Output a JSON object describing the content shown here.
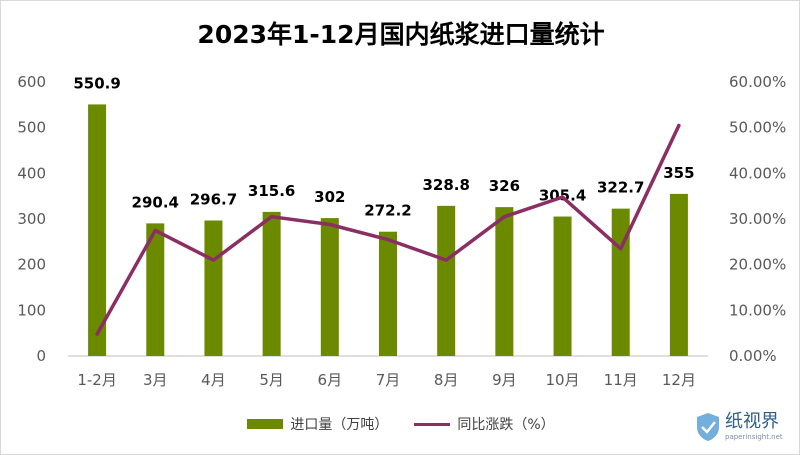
{
  "chart_data": {
    "type": "bar+line",
    "title": "2023年1-12月国内纸浆进口量统计",
    "categories": [
      "1-2月",
      "3月",
      "4月",
      "5月",
      "6月",
      "7月",
      "8月",
      "9月",
      "10月",
      "11月",
      "12月"
    ],
    "series": [
      {
        "name": "进口量（万吨）",
        "type": "bar",
        "axis": "left",
        "values": [
          550.9,
          290.4,
          296.7,
          315.6,
          302,
          272.2,
          328.8,
          326,
          305.4,
          322.7,
          355
        ],
        "labels": [
          "550.9",
          "290.4",
          "296.7",
          "315.6",
          "302",
          "272.2",
          "328.8",
          "326",
          "305.4",
          "322.7",
          "355"
        ],
        "color": "#6b8a00"
      },
      {
        "name": "同比涨跌（%）",
        "type": "line",
        "axis": "right",
        "values": [
          4.8,
          27.5,
          21,
          30.5,
          28.8,
          25.5,
          21,
          30.5,
          34.8,
          23.5,
          50.5
        ],
        "color": "#8b2e62"
      }
    ],
    "ylim_left": [
      0,
      600
    ],
    "yticks_left": [
      "0",
      "100",
      "200",
      "300",
      "400",
      "500",
      "600"
    ],
    "ylim_right": [
      0,
      60
    ],
    "yticks_right": [
      "0.00%",
      "10.00%",
      "20.00%",
      "30.00%",
      "40.00%",
      "50.00%",
      "60.00%"
    ],
    "grid": false,
    "legend_position": "bottom"
  },
  "watermark": {
    "text": "纸视界",
    "url": "paperinsight.net"
  }
}
